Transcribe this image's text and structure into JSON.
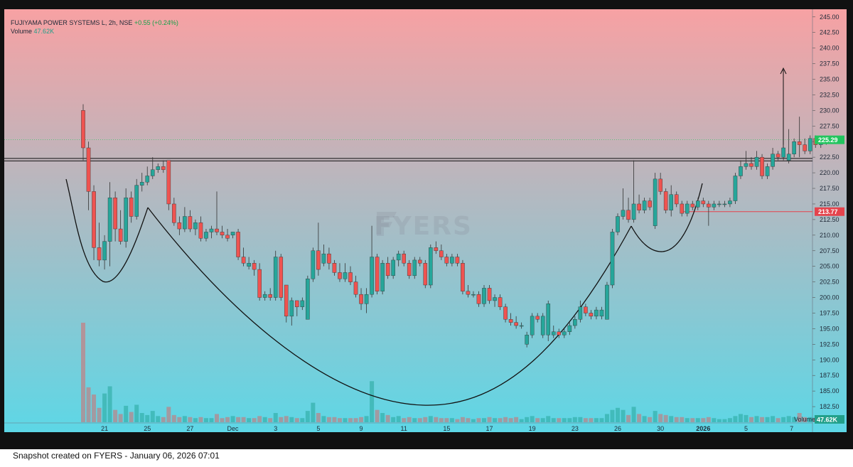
{
  "legend": {
    "symbol": "FUJIYAMA POWER SYSTEMS L, 2h, NSE",
    "change": "+0.55 (+0.24%)",
    "volume_label": "Volume",
    "volume_value": "47.62K"
  },
  "watermark": "FYERS",
  "footer": "Snapshot created on FYERS - January 06, 2026 07:01",
  "colors": {
    "up": "#26a69a",
    "down": "#ef5350",
    "bg_top": "#f7a1a3",
    "bg_bottom": "#5dd7e6",
    "last_price_tag": "#22c55e",
    "level_tag": "#e5434c"
  },
  "chart_data": {
    "type": "candlestick",
    "title": "FUJIYAMA POWER SYSTEMS L, 2h, NSE",
    "ylim": [
      180.0,
      246.0
    ],
    "y_ticks": [
      "245.00",
      "242.50",
      "240.00",
      "237.50",
      "235.00",
      "232.50",
      "230.00",
      "227.50",
      "225.00",
      "222.50",
      "220.00",
      "217.50",
      "215.00",
      "212.50",
      "210.00",
      "207.50",
      "205.00",
      "202.50",
      "200.00",
      "197.50",
      "195.00",
      "192.50",
      "190.00",
      "187.50",
      "185.00",
      "182.50"
    ],
    "x_ticks": [
      {
        "label": "21",
        "index": 4
      },
      {
        "label": "25",
        "index": 12
      },
      {
        "label": "27",
        "index": 20
      },
      {
        "label": "Dec",
        "index": 28
      },
      {
        "label": "3",
        "index": 36
      },
      {
        "label": "5",
        "index": 44
      },
      {
        "label": "9",
        "index": 52
      },
      {
        "label": "11",
        "index": 60
      },
      {
        "label": "15",
        "index": 68
      },
      {
        "label": "17",
        "index": 76
      },
      {
        "label": "19",
        "index": 84
      },
      {
        "label": "23",
        "index": 92
      },
      {
        "label": "26",
        "index": 100
      },
      {
        "label": "30",
        "index": 108
      },
      {
        "label": "2026",
        "index": 116
      },
      {
        "label": "5",
        "index": 124
      },
      {
        "label": "7",
        "index": 132
      }
    ],
    "last_price": "225.29",
    "level_price": "213.77",
    "volume_tag": "47.62K",
    "ohlcv": [
      {
        "o": 230.0,
        "h": 231.0,
        "l": 222.0,
        "c": 224.0,
        "v": 97
      },
      {
        "o": 224.0,
        "h": 225.0,
        "l": 214.0,
        "c": 217.0,
        "v": 34
      },
      {
        "o": 217.0,
        "h": 218.0,
        "l": 206.0,
        "c": 208.0,
        "v": 27
      },
      {
        "o": 208.0,
        "h": 212.0,
        "l": 205.0,
        "c": 206.0,
        "v": 14
      },
      {
        "o": 206.0,
        "h": 210.0,
        "l": 204.5,
        "c": 209.0,
        "v": 28
      },
      {
        "o": 209.0,
        "h": 218.5,
        "l": 205.0,
        "c": 216.0,
        "v": 35
      },
      {
        "o": 216.0,
        "h": 217.0,
        "l": 209.0,
        "c": 211.0,
        "v": 12
      },
      {
        "o": 211.0,
        "h": 214.0,
        "l": 208.5,
        "c": 209.0,
        "v": 8
      },
      {
        "o": 209.0,
        "h": 217.5,
        "l": 208.0,
        "c": 216.0,
        "v": 16
      },
      {
        "o": 216.0,
        "h": 217.0,
        "l": 212.0,
        "c": 213.0,
        "v": 10
      },
      {
        "o": 213.0,
        "h": 219.0,
        "l": 212.5,
        "c": 218.0,
        "v": 17
      },
      {
        "o": 218.0,
        "h": 220.0,
        "l": 217.0,
        "c": 218.5,
        "v": 9
      },
      {
        "o": 218.5,
        "h": 221.0,
        "l": 218.0,
        "c": 219.5,
        "v": 7
      },
      {
        "o": 219.5,
        "h": 222.5,
        "l": 219.0,
        "c": 220.5,
        "v": 11
      },
      {
        "o": 220.5,
        "h": 221.5,
        "l": 220.0,
        "c": 221.0,
        "v": 6
      },
      {
        "o": 221.0,
        "h": 222.0,
        "l": 220.0,
        "c": 220.5,
        "v": 5
      },
      {
        "o": 222.0,
        "h": 222.0,
        "l": 214.0,
        "c": 215.0,
        "v": 15
      },
      {
        "o": 215.0,
        "h": 216.0,
        "l": 211.5,
        "c": 212.0,
        "v": 7
      },
      {
        "o": 212.0,
        "h": 213.0,
        "l": 210.0,
        "c": 211.0,
        "v": 5
      },
      {
        "o": 211.0,
        "h": 214.5,
        "l": 210.5,
        "c": 213.0,
        "v": 6
      },
      {
        "o": 213.0,
        "h": 214.0,
        "l": 210.5,
        "c": 211.0,
        "v": 5
      },
      {
        "o": 211.0,
        "h": 212.5,
        "l": 210.0,
        "c": 212.0,
        "v": 4
      },
      {
        "o": 212.0,
        "h": 213.0,
        "l": 209.0,
        "c": 209.5,
        "v": 5
      },
      {
        "o": 209.5,
        "h": 211.0,
        "l": 209.0,
        "c": 210.5,
        "v": 4
      },
      {
        "o": 210.5,
        "h": 211.5,
        "l": 209.5,
        "c": 211.0,
        "v": 4
      },
      {
        "o": 211.0,
        "h": 217.0,
        "l": 210.0,
        "c": 210.5,
        "v": 8
      },
      {
        "o": 210.5,
        "h": 211.5,
        "l": 209.5,
        "c": 210.0,
        "v": 4
      },
      {
        "o": 210.0,
        "h": 211.0,
        "l": 209.0,
        "c": 209.5,
        "v": 5
      },
      {
        "o": 210.0,
        "h": 210.5,
        "l": 209.5,
        "c": 210.5,
        "v": 6
      },
      {
        "o": 210.5,
        "h": 211.0,
        "l": 206.0,
        "c": 206.5,
        "v": 5
      },
      {
        "o": 206.5,
        "h": 208.0,
        "l": 205.0,
        "c": 205.5,
        "v": 5
      },
      {
        "o": 205.0,
        "h": 206.5,
        "l": 204.5,
        "c": 205.5,
        "v": 4
      },
      {
        "o": 205.5,
        "h": 206.0,
        "l": 203.5,
        "c": 204.5,
        "v": 4
      },
      {
        "o": 204.5,
        "h": 205.5,
        "l": 199.5,
        "c": 200.0,
        "v": 6
      },
      {
        "o": 200.0,
        "h": 201.0,
        "l": 199.5,
        "c": 200.5,
        "v": 5
      },
      {
        "o": 200.5,
        "h": 201.5,
        "l": 199.5,
        "c": 200.0,
        "v": 4
      },
      {
        "o": 200.0,
        "h": 207.5,
        "l": 199.5,
        "c": 206.5,
        "v": 9
      },
      {
        "o": 206.5,
        "h": 207.0,
        "l": 199.5,
        "c": 200.0,
        "v": 5
      },
      {
        "o": 202.0,
        "h": 202.0,
        "l": 196.0,
        "c": 197.0,
        "v": 6
      },
      {
        "o": 197.0,
        "h": 200.0,
        "l": 195.5,
        "c": 199.5,
        "v": 5
      },
      {
        "o": 199.5,
        "h": 199.5,
        "l": 197.0,
        "c": 198.5,
        "v": 4
      },
      {
        "o": 198.5,
        "h": 200.0,
        "l": 198.0,
        "c": 199.5,
        "v": 4
      },
      {
        "o": 196.5,
        "h": 203.5,
        "l": 196.5,
        "c": 203.0,
        "v": 11
      },
      {
        "o": 203.0,
        "h": 208.0,
        "l": 202.5,
        "c": 207.5,
        "v": 19
      },
      {
        "o": 207.5,
        "h": 212.0,
        "l": 203.5,
        "c": 204.5,
        "v": 9
      },
      {
        "o": 205.5,
        "h": 208.5,
        "l": 205.0,
        "c": 207.0,
        "v": 6
      },
      {
        "o": 207.0,
        "h": 208.0,
        "l": 204.5,
        "c": 205.5,
        "v": 5
      },
      {
        "o": 205.5,
        "h": 206.0,
        "l": 203.5,
        "c": 204.0,
        "v": 5
      },
      {
        "o": 204.0,
        "h": 205.5,
        "l": 202.5,
        "c": 203.0,
        "v": 4
      },
      {
        "o": 203.0,
        "h": 205.5,
        "l": 202.5,
        "c": 204.0,
        "v": 4
      },
      {
        "o": 204.0,
        "h": 205.0,
        "l": 202.0,
        "c": 202.5,
        "v": 4
      },
      {
        "o": 202.5,
        "h": 203.5,
        "l": 200.0,
        "c": 200.5,
        "v": 4
      },
      {
        "o": 200.5,
        "h": 201.5,
        "l": 198.0,
        "c": 199.0,
        "v": 5
      },
      {
        "o": 199.0,
        "h": 201.5,
        "l": 197.5,
        "c": 200.5,
        "v": 6
      },
      {
        "o": 200.5,
        "h": 211.5,
        "l": 200.0,
        "c": 206.5,
        "v": 40
      },
      {
        "o": 206.5,
        "h": 207.0,
        "l": 200.5,
        "c": 201.0,
        "v": 12
      },
      {
        "o": 201.0,
        "h": 206.0,
        "l": 200.5,
        "c": 205.5,
        "v": 9
      },
      {
        "o": 205.5,
        "h": 206.5,
        "l": 203.0,
        "c": 203.5,
        "v": 7
      },
      {
        "o": 203.5,
        "h": 206.5,
        "l": 203.0,
        "c": 206.0,
        "v": 5
      },
      {
        "o": 206.0,
        "h": 207.5,
        "l": 205.0,
        "c": 207.0,
        "v": 6
      },
      {
        "o": 207.0,
        "h": 207.5,
        "l": 205.0,
        "c": 205.5,
        "v": 4
      },
      {
        "o": 205.5,
        "h": 206.0,
        "l": 203.0,
        "c": 203.5,
        "v": 5
      },
      {
        "o": 203.5,
        "h": 206.5,
        "l": 203.0,
        "c": 206.0,
        "v": 4
      },
      {
        "o": 206.0,
        "h": 206.5,
        "l": 205.0,
        "c": 205.5,
        "v": 4
      },
      {
        "o": 205.5,
        "h": 206.0,
        "l": 201.5,
        "c": 202.0,
        "v": 5
      },
      {
        "o": 202.0,
        "h": 208.5,
        "l": 201.5,
        "c": 208.0,
        "v": 6
      },
      {
        "o": 208.0,
        "h": 209.0,
        "l": 207.0,
        "c": 207.5,
        "v": 5
      },
      {
        "o": 207.5,
        "h": 208.5,
        "l": 206.0,
        "c": 206.5,
        "v": 4
      },
      {
        "o": 206.5,
        "h": 207.0,
        "l": 205.0,
        "c": 205.5,
        "v": 4
      },
      {
        "o": 205.5,
        "h": 207.0,
        "l": 205.0,
        "c": 206.5,
        "v": 4
      },
      {
        "o": 206.5,
        "h": 207.0,
        "l": 205.0,
        "c": 205.5,
        "v": 3
      },
      {
        "o": 205.5,
        "h": 206.0,
        "l": 200.5,
        "c": 201.0,
        "v": 5
      },
      {
        "o": 201.0,
        "h": 202.0,
        "l": 200.0,
        "c": 200.5,
        "v": 4
      },
      {
        "o": 200.5,
        "h": 201.0,
        "l": 200.0,
        "c": 200.5,
        "v": 3
      },
      {
        "o": 200.5,
        "h": 201.0,
        "l": 198.5,
        "c": 199.0,
        "v": 4
      },
      {
        "o": 199.0,
        "h": 202.0,
        "l": 198.5,
        "c": 201.5,
        "v": 4
      },
      {
        "o": 201.5,
        "h": 202.0,
        "l": 199.0,
        "c": 199.5,
        "v": 5
      },
      {
        "o": 199.5,
        "h": 200.5,
        "l": 198.5,
        "c": 200.0,
        "v": 4
      },
      {
        "o": 200.0,
        "h": 200.5,
        "l": 198.0,
        "c": 198.5,
        "v": 4
      },
      {
        "o": 198.5,
        "h": 199.0,
        "l": 196.0,
        "c": 196.5,
        "v": 5
      },
      {
        "o": 196.5,
        "h": 197.5,
        "l": 195.5,
        "c": 196.0,
        "v": 4
      },
      {
        "o": 196.0,
        "h": 197.0,
        "l": 195.0,
        "c": 195.5,
        "v": 5
      },
      {
        "o": 195.5,
        "h": 196.0,
        "l": 195.0,
        "c": 195.5,
        "v": 3
      },
      {
        "o": 192.5,
        "h": 194.5,
        "l": 192.0,
        "c": 194.0,
        "v": 5
      },
      {
        "o": 194.0,
        "h": 197.5,
        "l": 193.5,
        "c": 197.0,
        "v": 6
      },
      {
        "o": 197.0,
        "h": 197.5,
        "l": 196.0,
        "c": 196.5,
        "v": 4
      },
      {
        "o": 194.0,
        "h": 197.5,
        "l": 193.5,
        "c": 197.0,
        "v": 4
      },
      {
        "o": 194.0,
        "h": 199.5,
        "l": 193.0,
        "c": 199.0,
        "v": 6
      },
      {
        "o": 194.0,
        "h": 195.5,
        "l": 193.5,
        "c": 194.5,
        "v": 4
      },
      {
        "o": 194.5,
        "h": 195.0,
        "l": 193.5,
        "c": 194.0,
        "v": 4
      },
      {
        "o": 194.0,
        "h": 195.0,
        "l": 193.5,
        "c": 194.5,
        "v": 4
      },
      {
        "o": 194.5,
        "h": 196.0,
        "l": 194.0,
        "c": 195.5,
        "v": 4
      },
      {
        "o": 195.5,
        "h": 197.0,
        "l": 195.0,
        "c": 196.5,
        "v": 5
      },
      {
        "o": 196.5,
        "h": 199.5,
        "l": 196.0,
        "c": 198.5,
        "v": 5
      },
      {
        "o": 198.5,
        "h": 199.0,
        "l": 197.0,
        "c": 197.5,
        "v": 4
      },
      {
        "o": 197.5,
        "h": 198.0,
        "l": 196.5,
        "c": 197.0,
        "v": 4
      },
      {
        "o": 197.0,
        "h": 198.5,
        "l": 196.5,
        "c": 198.0,
        "v": 4
      },
      {
        "o": 197.0,
        "h": 198.5,
        "l": 196.5,
        "c": 198.0,
        "v": 4
      },
      {
        "o": 196.5,
        "h": 202.5,
        "l": 196.5,
        "c": 202.0,
        "v": 8
      },
      {
        "o": 202.0,
        "h": 211.0,
        "l": 201.5,
        "c": 210.5,
        "v": 12
      },
      {
        "o": 210.5,
        "h": 213.5,
        "l": 210.0,
        "c": 213.0,
        "v": 14
      },
      {
        "o": 213.0,
        "h": 217.5,
        "l": 212.5,
        "c": 214.0,
        "v": 12
      },
      {
        "o": 214.0,
        "h": 216.0,
        "l": 212.0,
        "c": 212.5,
        "v": 7
      },
      {
        "o": 212.5,
        "h": 222.0,
        "l": 212.0,
        "c": 215.0,
        "v": 15
      },
      {
        "o": 215.0,
        "h": 216.5,
        "l": 213.5,
        "c": 214.0,
        "v": 8
      },
      {
        "o": 214.0,
        "h": 216.0,
        "l": 213.5,
        "c": 215.5,
        "v": 6
      },
      {
        "o": 215.5,
        "h": 216.0,
        "l": 214.0,
        "c": 214.5,
        "v": 5
      },
      {
        "o": 211.5,
        "h": 220.0,
        "l": 211.0,
        "c": 219.0,
        "v": 11
      },
      {
        "o": 219.0,
        "h": 220.0,
        "l": 216.5,
        "c": 217.0,
        "v": 8
      },
      {
        "o": 217.0,
        "h": 217.5,
        "l": 213.5,
        "c": 214.0,
        "v": 7
      },
      {
        "o": 214.0,
        "h": 218.0,
        "l": 213.0,
        "c": 216.5,
        "v": 6
      },
      {
        "o": 216.5,
        "h": 217.0,
        "l": 214.5,
        "c": 215.0,
        "v": 5
      },
      {
        "o": 215.0,
        "h": 215.5,
        "l": 213.0,
        "c": 213.5,
        "v": 5
      },
      {
        "o": 213.5,
        "h": 215.5,
        "l": 213.0,
        "c": 215.0,
        "v": 4
      },
      {
        "o": 215.0,
        "h": 215.5,
        "l": 214.0,
        "c": 214.5,
        "v": 4
      },
      {
        "o": 214.5,
        "h": 216.0,
        "l": 214.0,
        "c": 215.5,
        "v": 4
      },
      {
        "o": 215.5,
        "h": 216.0,
        "l": 214.5,
        "c": 215.0,
        "v": 4
      },
      {
        "o": 215.0,
        "h": 215.5,
        "l": 211.5,
        "c": 214.5,
        "v": 5
      },
      {
        "o": 214.5,
        "h": 215.5,
        "l": 214.0,
        "c": 215.0,
        "v": 4
      },
      {
        "o": 215.0,
        "h": 215.5,
        "l": 214.5,
        "c": 215.0,
        "v": 3
      },
      {
        "o": 215.0,
        "h": 215.5,
        "l": 214.5,
        "c": 215.0,
        "v": 3
      },
      {
        "o": 215.0,
        "h": 216.0,
        "l": 214.5,
        "c": 215.5,
        "v": 4
      },
      {
        "o": 215.5,
        "h": 220.0,
        "l": 215.0,
        "c": 219.5,
        "v": 6
      },
      {
        "o": 219.5,
        "h": 222.0,
        "l": 219.0,
        "c": 221.0,
        "v": 8
      },
      {
        "o": 221.0,
        "h": 223.5,
        "l": 220.5,
        "c": 221.5,
        "v": 7
      },
      {
        "o": 221.5,
        "h": 222.5,
        "l": 220.5,
        "c": 221.0,
        "v": 5
      },
      {
        "o": 221.0,
        "h": 223.5,
        "l": 220.5,
        "c": 222.5,
        "v": 6
      },
      {
        "o": 222.5,
        "h": 223.0,
        "l": 219.0,
        "c": 219.5,
        "v": 5
      },
      {
        "o": 219.5,
        "h": 221.5,
        "l": 219.0,
        "c": 221.0,
        "v": 5
      },
      {
        "o": 221.0,
        "h": 224.0,
        "l": 220.5,
        "c": 223.0,
        "v": 6
      },
      {
        "o": 223.0,
        "h": 223.5,
        "l": 222.0,
        "c": 222.5,
        "v": 4
      },
      {
        "o": 222.5,
        "h": 224.5,
        "l": 222.0,
        "c": 224.0,
        "v": 5
      },
      {
        "o": 222.0,
        "h": 227.0,
        "l": 221.5,
        "c": 223.0,
        "v": 6
      },
      {
        "o": 223.0,
        "h": 225.5,
        "l": 222.5,
        "c": 225.0,
        "v": 5
      },
      {
        "o": 225.0,
        "h": 229.0,
        "l": 222.5,
        "c": 224.5,
        "v": 9
      },
      {
        "o": 224.5,
        "h": 225.5,
        "l": 223.0,
        "c": 223.5,
        "v": 5
      },
      {
        "o": 223.5,
        "h": 226.0,
        "l": 223.0,
        "c": 225.5,
        "v": 5
      },
      {
        "o": 225.5,
        "h": 226.0,
        "l": 224.0,
        "c": 224.5,
        "v": 4
      },
      {
        "o": 224.5,
        "h": 225.0,
        "l": 224.0,
        "c": 224.74,
        "v": 3
      },
      {
        "o": 224.74,
        "h": 225.6,
        "l": 224.5,
        "c": 225.29,
        "v": 3
      }
    ]
  }
}
